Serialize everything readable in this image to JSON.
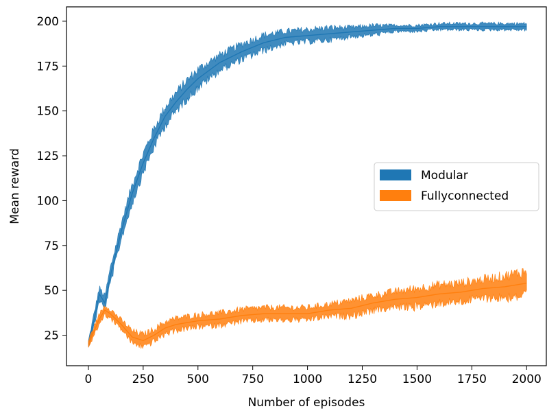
{
  "chart_data": {
    "type": "area",
    "xlabel": "Number of episodes",
    "ylabel": "Mean reward",
    "xlim": [
      -100,
      2090
    ],
    "ylim": [
      8,
      208
    ],
    "xticks": [
      0,
      250,
      500,
      750,
      1000,
      1250,
      1500,
      1750,
      2000
    ],
    "yticks": [
      25,
      50,
      75,
      100,
      125,
      150,
      175,
      200
    ],
    "grid": false,
    "legend_position": "center-right",
    "series": [
      {
        "name": "Modular",
        "color": "#1f77b4",
        "x": [
          0,
          25,
          50,
          75,
          100,
          150,
          200,
          250,
          300,
          350,
          400,
          450,
          500,
          600,
          700,
          800,
          900,
          1000,
          1100,
          1200,
          1300,
          1400,
          1500,
          1600,
          1700,
          1800,
          1900,
          2000
        ],
        "values": [
          20,
          33,
          48,
          43,
          58,
          83,
          104,
          121,
          135,
          147,
          155,
          162,
          168,
          177,
          183,
          188,
          191,
          192,
          193,
          194,
          195,
          196,
          196,
          197,
          197,
          197,
          197,
          197
        ],
        "spread": [
          2,
          4,
          4,
          4,
          5,
          5,
          6,
          6,
          6,
          6,
          6,
          6,
          6,
          5,
          5,
          5,
          4,
          4,
          4,
          3,
          3,
          2,
          2,
          2,
          2,
          2,
          2,
          2
        ]
      },
      {
        "name": "Fullyconnected",
        "color": "#ff7f0e",
        "x": [
          0,
          25,
          50,
          75,
          100,
          150,
          200,
          250,
          300,
          350,
          400,
          450,
          500,
          600,
          700,
          800,
          900,
          1000,
          1100,
          1200,
          1300,
          1400,
          1500,
          1600,
          1700,
          1800,
          1900,
          2000
        ],
        "values": [
          20,
          27,
          34,
          39,
          37,
          31,
          24,
          22,
          25,
          29,
          31,
          32,
          33,
          34,
          36,
          37,
          37,
          37,
          39,
          40,
          43,
          45,
          46,
          48,
          49,
          51,
          52,
          54
        ],
        "spread": [
          2,
          3,
          3,
          3,
          3,
          3,
          4,
          4,
          4,
          4,
          4,
          4,
          4,
          4,
          4,
          4,
          4,
          4,
          4,
          5,
          5,
          5,
          6,
          6,
          6,
          6,
          7,
          8
        ]
      }
    ]
  }
}
